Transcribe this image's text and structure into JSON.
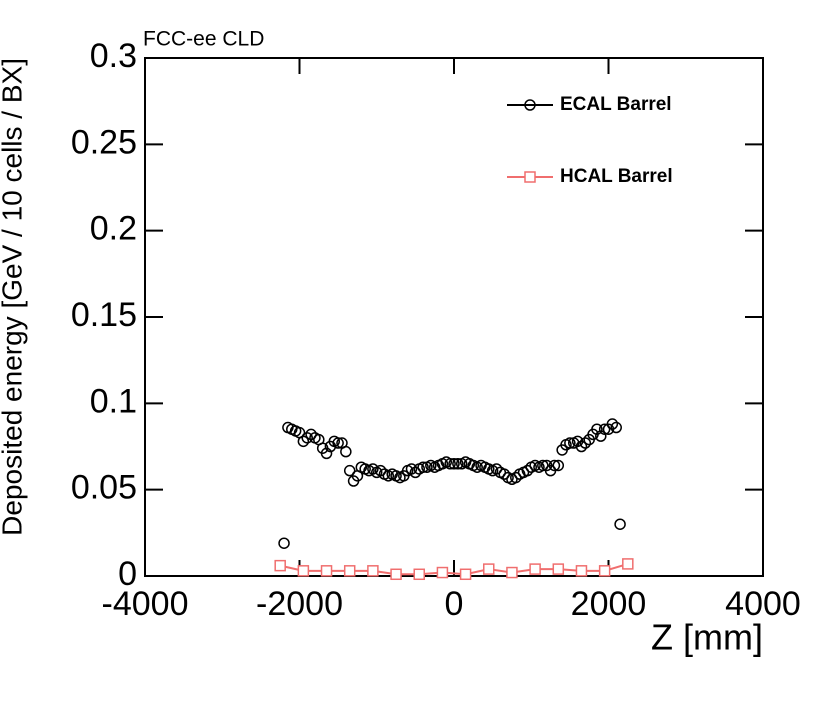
{
  "chart_data": {
    "type": "scatter",
    "title": "FCC-ee CLD",
    "xlabel": "Z [mm]",
    "ylabel": "Deposited energy [GeV / 10 cells / BX]",
    "xlim": [
      -4000,
      4000
    ],
    "xticks": [
      -4000,
      -2000,
      0,
      2000,
      4000
    ],
    "ylim": [
      0,
      0.3
    ],
    "yticks": [
      0,
      0.05,
      0.1,
      0.15,
      0.2,
      0.25,
      0.3
    ],
    "legend": "upper right",
    "series": [
      {
        "name": "ECAL Barrel",
        "color": "#000000",
        "marker": "circle",
        "line": false,
        "x": [
          -2200,
          -2150,
          -2100,
          -2050,
          -2000,
          -1950,
          -1900,
          -1850,
          -1800,
          -1750,
          -1700,
          -1650,
          -1600,
          -1550,
          -1500,
          -1450,
          -1400,
          -1350,
          -1300,
          -1250,
          -1200,
          -1150,
          -1100,
          -1050,
          -1000,
          -950,
          -900,
          -850,
          -800,
          -750,
          -700,
          -650,
          -600,
          -550,
          -500,
          -450,
          -400,
          -350,
          -300,
          -250,
          -200,
          -150,
          -100,
          -50,
          0,
          50,
          100,
          150,
          200,
          250,
          300,
          350,
          400,
          450,
          500,
          550,
          600,
          650,
          700,
          750,
          800,
          850,
          900,
          950,
          1000,
          1050,
          1100,
          1150,
          1200,
          1250,
          1300,
          1350,
          1400,
          1450,
          1500,
          1550,
          1600,
          1650,
          1700,
          1750,
          1800,
          1850,
          1900,
          1950,
          2000,
          2050,
          2100,
          2150
        ],
        "values": [
          0.019,
          0.086,
          0.085,
          0.084,
          0.083,
          0.078,
          0.08,
          0.082,
          0.08,
          0.079,
          0.074,
          0.071,
          0.075,
          0.078,
          0.077,
          0.077,
          0.072,
          0.061,
          0.055,
          0.058,
          0.063,
          0.062,
          0.061,
          0.062,
          0.06,
          0.061,
          0.059,
          0.058,
          0.059,
          0.058,
          0.057,
          0.058,
          0.061,
          0.062,
          0.06,
          0.062,
          0.063,
          0.063,
          0.064,
          0.063,
          0.064,
          0.065,
          0.066,
          0.065,
          0.065,
          0.065,
          0.065,
          0.066,
          0.065,
          0.064,
          0.063,
          0.064,
          0.063,
          0.062,
          0.061,
          0.062,
          0.06,
          0.059,
          0.057,
          0.056,
          0.057,
          0.059,
          0.06,
          0.061,
          0.063,
          0.064,
          0.063,
          0.064,
          0.064,
          0.061,
          0.064,
          0.064,
          0.073,
          0.076,
          0.077,
          0.077,
          0.078,
          0.075,
          0.077,
          0.079,
          0.082,
          0.085,
          0.081,
          0.085,
          0.085,
          0.088,
          0.086,
          0.03
        ]
      },
      {
        "name": "HCAL Barrel",
        "color": "#f06e6e",
        "marker": "square",
        "line": true,
        "x": [
          -2250,
          -1950,
          -1650,
          -1350,
          -1050,
          -750,
          -450,
          -150,
          150,
          450,
          750,
          1050,
          1350,
          1650,
          1950,
          2250
        ],
        "values": [
          0.006,
          0.003,
          0.003,
          0.003,
          0.003,
          0.001,
          0.001,
          0.002,
          0.001,
          0.004,
          0.002,
          0.004,
          0.004,
          0.003,
          0.003,
          0.007
        ]
      }
    ]
  }
}
